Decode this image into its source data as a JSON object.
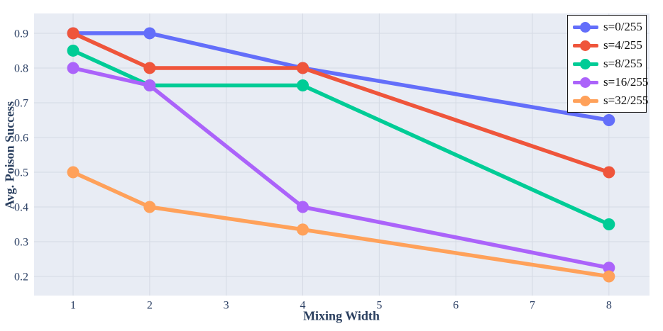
{
  "figure": {
    "background_color": "#ffffff",
    "plot_bg_color": "#e8ecf4",
    "grid_color": "#d5dae4",
    "tick_label_color": "#2e4266",
    "axis_title_color": "#2a3f5f",
    "legend": {
      "border_color": "#1c1c1c",
      "bg_color": "#ffffff",
      "text_color": "#111111"
    }
  },
  "chart_data": {
    "type": "line",
    "title": "",
    "xlabel": "Mixing Width",
    "ylabel": "Avg. Poison Success",
    "x": [
      1,
      2,
      4,
      8
    ],
    "series": [
      {
        "name": "s=0/255",
        "color": "#636EFA",
        "values": [
          0.9,
          0.9,
          0.8,
          0.65
        ]
      },
      {
        "name": "s=4/255",
        "color": "#EF553B",
        "values": [
          0.9,
          0.8,
          0.8,
          0.5
        ]
      },
      {
        "name": "s=8/255",
        "color": "#00CC96",
        "values": [
          0.85,
          0.75,
          0.75,
          0.35
        ]
      },
      {
        "name": "s=16/255",
        "color": "#AB63FA",
        "values": [
          0.8,
          0.75,
          0.4,
          0.225
        ]
      },
      {
        "name": "s=32/255",
        "color": "#FFA15A",
        "values": [
          0.5,
          0.4,
          0.335,
          0.2
        ]
      }
    ],
    "x_ticks": [
      1,
      2,
      3,
      4,
      5,
      6,
      7,
      8
    ],
    "y_ticks": [
      0.2,
      0.3,
      0.4,
      0.5,
      0.6,
      0.7,
      0.8,
      0.9
    ],
    "xlim": [
      0.49,
      8.53
    ],
    "ylim": [
      0.145,
      0.957
    ],
    "grid": true,
    "legend_position": "top-right",
    "marker": "circle",
    "line_width": 5.5,
    "marker_radius": 8.5
  }
}
